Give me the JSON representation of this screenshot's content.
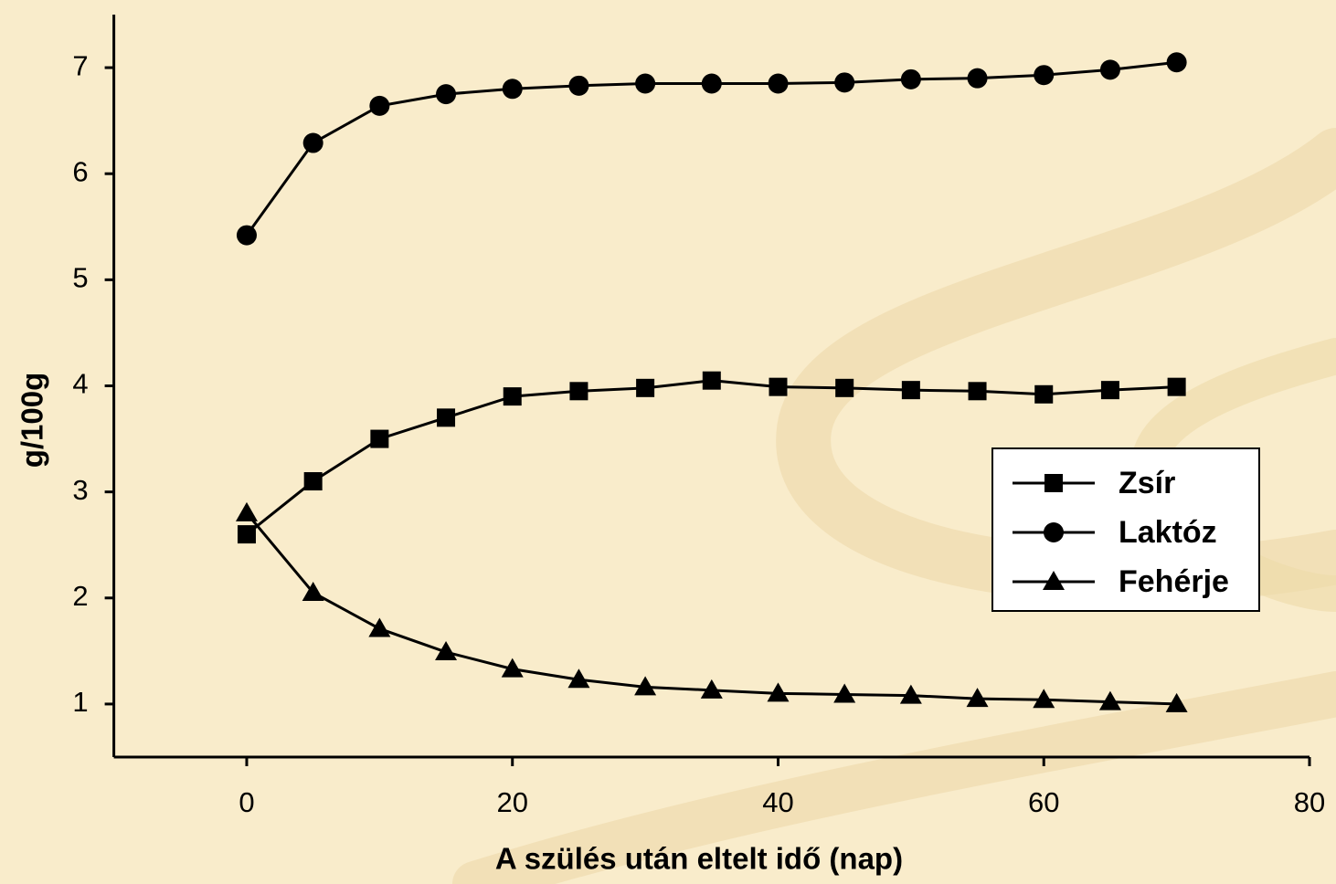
{
  "chart_data": {
    "type": "line",
    "x_label": "A szülés után eltelt idő (nap)",
    "y_label": "g/100g",
    "x": [
      0,
      5,
      10,
      15,
      20,
      25,
      30,
      35,
      40,
      45,
      50,
      55,
      60,
      65,
      70
    ],
    "series": [
      {
        "name": "Zsír",
        "color": "#000000",
        "marker": "square",
        "values": [
          2.6,
          3.1,
          3.5,
          3.7,
          3.9,
          3.95,
          3.98,
          4.05,
          3.99,
          3.98,
          3.96,
          3.95,
          3.92,
          3.96,
          3.99
        ]
      },
      {
        "name": "Laktóz",
        "color": "#000000",
        "marker": "circle",
        "values": [
          5.42,
          6.29,
          6.64,
          6.75,
          6.8,
          6.83,
          6.85,
          6.85,
          6.85,
          6.86,
          6.89,
          6.9,
          6.93,
          6.98,
          7.05
        ]
      },
      {
        "name": "Fehérje",
        "color": "#000000",
        "marker": "triangle",
        "values": [
          2.8,
          2.05,
          1.71,
          1.49,
          1.33,
          1.23,
          1.16,
          1.13,
          1.1,
          1.09,
          1.08,
          1.05,
          1.04,
          1.02,
          1.0
        ]
      }
    ],
    "xlim": [
      -10,
      80
    ],
    "xticks": [
      0,
      20,
      40,
      60,
      80
    ],
    "ylim": [
      0.5,
      7.5
    ],
    "yticks": [
      1,
      2,
      3,
      4,
      5,
      6,
      7
    ],
    "grid": false,
    "legend": "right"
  }
}
